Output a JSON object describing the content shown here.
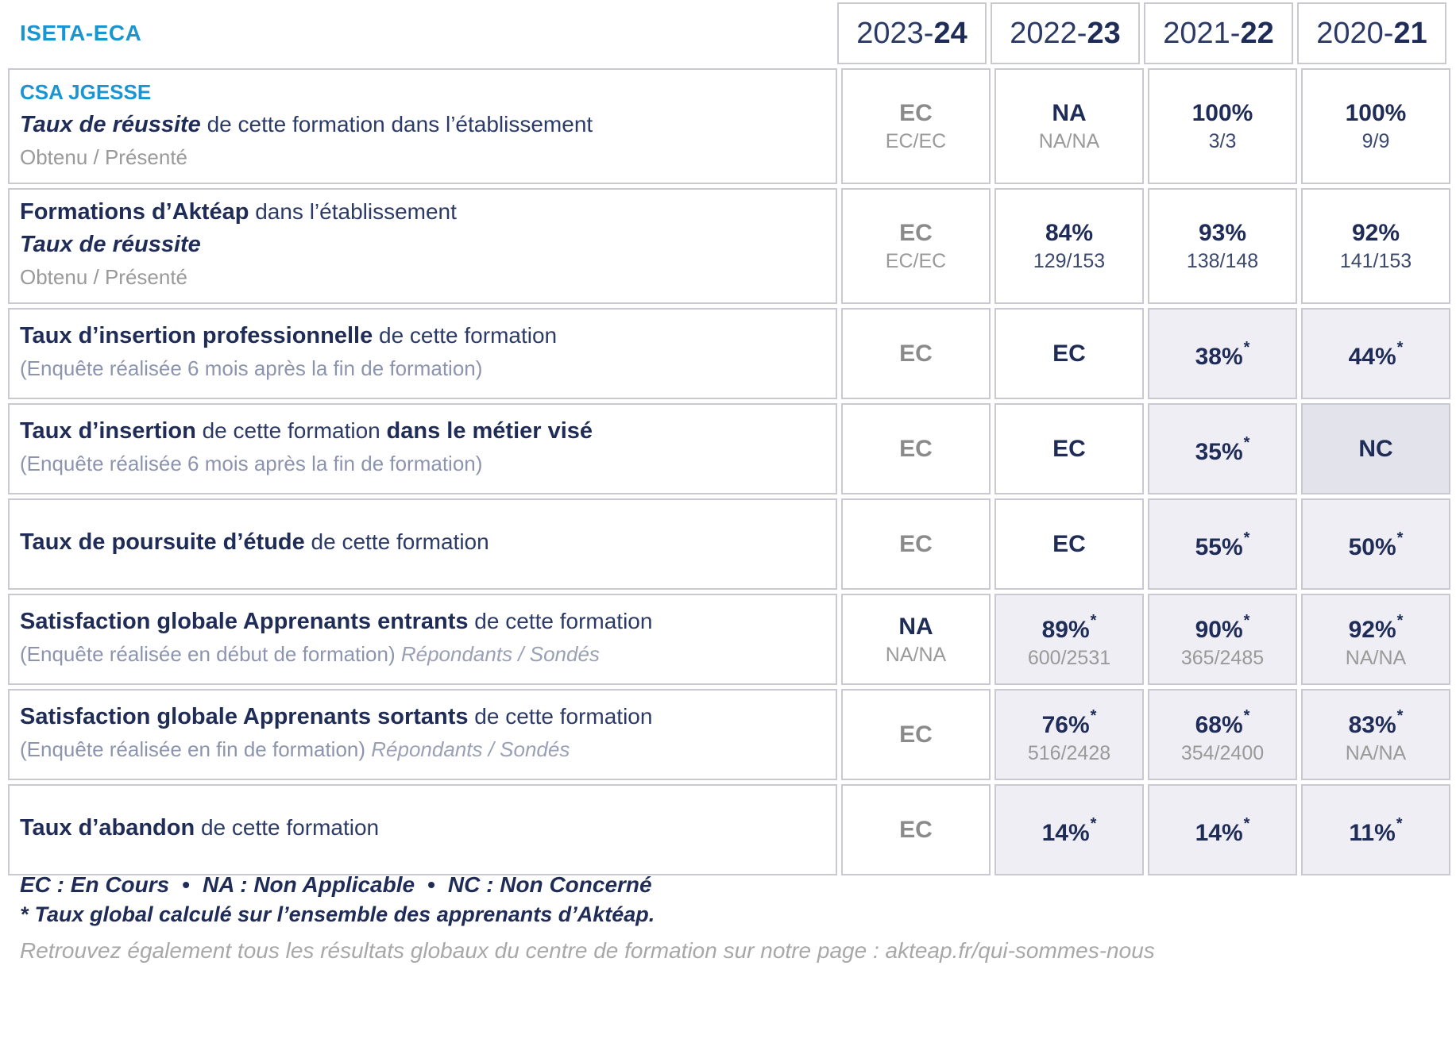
{
  "title": "ISETA-ECA",
  "colors": {
    "accent_blue": "#1b95d2",
    "navy_bold": "#1f2c57",
    "navy_regular": "#2c3a68",
    "gray_value": "#8b8b8b",
    "gray_sub": "#9a9a9a",
    "bluegray_sub": "#8d94ae",
    "cell_border": "#c9c9d1",
    "cell_shade": "#eeeef4",
    "cell_shade_dark": "#e3e3ec"
  },
  "table": {
    "years": [
      {
        "prefix": "2023-",
        "suffix": "24"
      },
      {
        "prefix": "2022-",
        "suffix": "23"
      },
      {
        "prefix": "2021-",
        "suffix": "22"
      },
      {
        "prefix": "2020-",
        "suffix": "21"
      }
    ],
    "rows": [
      {
        "name": "taux-reussite-formation",
        "label_lines": [
          [
            {
              "text": "CSA JGESSE",
              "style": "csa"
            }
          ],
          [
            {
              "text": "Taux de réussite",
              "style": "bi"
            },
            {
              "text": " de cette formation dans l’établissement",
              "style": "r"
            }
          ],
          [
            {
              "text": "Obtenu / Présenté",
              "style": "sub-gray"
            }
          ]
        ],
        "cells": [
          {
            "main": "EC",
            "main_color": "gray",
            "star": false,
            "sub": "EC/EC",
            "sub_color": "gray",
            "bg": "white"
          },
          {
            "main": "NA",
            "main_color": "navy",
            "star": false,
            "sub": "NA/NA",
            "sub_color": "gray",
            "bg": "white"
          },
          {
            "main": "100%",
            "main_color": "navy",
            "star": false,
            "sub": "3/3",
            "sub_color": "navy",
            "bg": "white"
          },
          {
            "main": "100%",
            "main_color": "navy",
            "star": false,
            "sub": "9/9",
            "sub_color": "navy",
            "bg": "white"
          }
        ]
      },
      {
        "name": "taux-reussite-akteap",
        "label_lines": [
          [
            {
              "text": "Formations d’Aktéap",
              "style": "b"
            },
            {
              "text": " dans l’établissement",
              "style": "r"
            }
          ],
          [
            {
              "text": "Taux de réussite",
              "style": "bi"
            }
          ],
          [
            {
              "text": "Obtenu / Présenté",
              "style": "sub-gray"
            }
          ]
        ],
        "cells": [
          {
            "main": "EC",
            "main_color": "gray",
            "star": false,
            "sub": "EC/EC",
            "sub_color": "gray",
            "bg": "white"
          },
          {
            "main": "84%",
            "main_color": "navy",
            "star": false,
            "sub": "129/153",
            "sub_color": "navy",
            "bg": "white"
          },
          {
            "main": "93%",
            "main_color": "navy",
            "star": false,
            "sub": "138/148",
            "sub_color": "navy",
            "bg": "white"
          },
          {
            "main": "92%",
            "main_color": "navy",
            "star": false,
            "sub": "141/153",
            "sub_color": "navy",
            "bg": "white"
          }
        ]
      },
      {
        "name": "taux-insertion-professionnelle",
        "label_lines": [
          [
            {
              "text": "Taux d’insertion professionnelle",
              "style": "b"
            },
            {
              "text": " de cette formation",
              "style": "r"
            }
          ],
          [
            {
              "text": "(Enquête réalisée 6 mois après la fin de formation)",
              "style": "sub-blue"
            }
          ]
        ],
        "cells": [
          {
            "main": "EC",
            "main_color": "gray",
            "star": false,
            "sub": "",
            "sub_color": "",
            "bg": "white"
          },
          {
            "main": "EC",
            "main_color": "navy",
            "star": false,
            "sub": "",
            "sub_color": "",
            "bg": "white"
          },
          {
            "main": "38%",
            "main_color": "navy",
            "star": true,
            "sub": "",
            "sub_color": "",
            "bg": "lav"
          },
          {
            "main": "44%",
            "main_color": "navy",
            "star": true,
            "sub": "",
            "sub_color": "",
            "bg": "lav"
          }
        ]
      },
      {
        "name": "taux-insertion-metier-vise",
        "label_lines": [
          [
            {
              "text": "Taux d’insertion",
              "style": "b"
            },
            {
              "text": " de cette formation ",
              "style": "r"
            },
            {
              "text": "dans le métier visé",
              "style": "b"
            }
          ],
          [
            {
              "text": "(Enquête réalisée 6 mois après la fin de formation)",
              "style": "sub-blue"
            }
          ]
        ],
        "cells": [
          {
            "main": "EC",
            "main_color": "gray",
            "star": false,
            "sub": "",
            "sub_color": "",
            "bg": "white"
          },
          {
            "main": "EC",
            "main_color": "navy",
            "star": false,
            "sub": "",
            "sub_color": "",
            "bg": "white"
          },
          {
            "main": "35%",
            "main_color": "navy",
            "star": true,
            "sub": "",
            "sub_color": "",
            "bg": "lav"
          },
          {
            "main": "NC",
            "main_color": "navy",
            "star": false,
            "sub": "",
            "sub_color": "",
            "bg": "lav2"
          }
        ]
      },
      {
        "name": "taux-poursuite-etude",
        "label_lines": [
          [
            {
              "text": "Taux de poursuite d’étude",
              "style": "b"
            },
            {
              "text": " de cette formation",
              "style": "r"
            }
          ]
        ],
        "cells": [
          {
            "main": "EC",
            "main_color": "gray",
            "star": false,
            "sub": "",
            "sub_color": "",
            "bg": "white"
          },
          {
            "main": "EC",
            "main_color": "navy",
            "star": false,
            "sub": "",
            "sub_color": "",
            "bg": "white"
          },
          {
            "main": "55%",
            "main_color": "navy",
            "star": true,
            "sub": "",
            "sub_color": "",
            "bg": "lav"
          },
          {
            "main": "50%",
            "main_color": "navy",
            "star": true,
            "sub": "",
            "sub_color": "",
            "bg": "lav"
          }
        ]
      },
      {
        "name": "satisfaction-apprenants-entrants",
        "label_lines": [
          [
            {
              "text": "Satisfaction globale Apprenants entrants",
              "style": "b"
            },
            {
              "text": " de cette formation",
              "style": "r"
            }
          ],
          [
            {
              "text": "(Enquête réalisée en début de formation) ",
              "style": "sub-blue"
            },
            {
              "text": "Répondants / Sondés",
              "style": "sub-blue-i"
            }
          ]
        ],
        "cells": [
          {
            "main": "NA",
            "main_color": "navy",
            "star": false,
            "sub": "NA/NA",
            "sub_color": "gray",
            "bg": "white"
          },
          {
            "main": "89%",
            "main_color": "navy",
            "star": true,
            "sub": "600/2531",
            "sub_color": "gray",
            "bg": "lav"
          },
          {
            "main": "90%",
            "main_color": "navy",
            "star": true,
            "sub": "365/2485",
            "sub_color": "gray",
            "bg": "lav"
          },
          {
            "main": "92%",
            "main_color": "navy",
            "star": true,
            "sub": "NA/NA",
            "sub_color": "gray",
            "bg": "lav"
          }
        ]
      },
      {
        "name": "satisfaction-apprenants-sortants",
        "label_lines": [
          [
            {
              "text": "Satisfaction globale Apprenants sortants",
              "style": "b"
            },
            {
              "text": " de cette formation",
              "style": "r"
            }
          ],
          [
            {
              "text": "(Enquête réalisée en fin de formation) ",
              "style": "sub-blue"
            },
            {
              "text": "Répondants / Sondés",
              "style": "sub-blue-i"
            }
          ]
        ],
        "cells": [
          {
            "main": "EC",
            "main_color": "gray",
            "star": false,
            "sub": "",
            "sub_color": "",
            "bg": "white"
          },
          {
            "main": "76%",
            "main_color": "navy",
            "star": true,
            "sub": "516/2428",
            "sub_color": "gray",
            "bg": "lav"
          },
          {
            "main": "68%",
            "main_color": "navy",
            "star": true,
            "sub": "354/2400",
            "sub_color": "gray",
            "bg": "lav"
          },
          {
            "main": "83%",
            "main_color": "navy",
            "star": true,
            "sub": "NA/NA",
            "sub_color": "gray",
            "bg": "lav"
          }
        ]
      },
      {
        "name": "taux-abandon",
        "label_lines": [
          [
            {
              "text": "Taux d’abandon",
              "style": "b"
            },
            {
              "text": " de cette formation",
              "style": "r"
            }
          ]
        ],
        "cells": [
          {
            "main": "EC",
            "main_color": "gray",
            "star": false,
            "sub": "",
            "sub_color": "",
            "bg": "white"
          },
          {
            "main": "14%",
            "main_color": "navy",
            "star": true,
            "sub": "",
            "sub_color": "",
            "bg": "lav"
          },
          {
            "main": "14%",
            "main_color": "navy",
            "star": true,
            "sub": "",
            "sub_color": "",
            "bg": "lav"
          },
          {
            "main": "11%",
            "main_color": "navy",
            "star": true,
            "sub": "",
            "sub_color": "",
            "bg": "lav"
          }
        ]
      }
    ]
  },
  "footer": {
    "legend_items": [
      "EC : En Cours",
      "NA : Non Applicable",
      "NC : Non Concerné"
    ],
    "bullet": "•",
    "footnote_star": "*",
    "footnote_text": "Taux global calculé sur l’ensemble des apprenants d’Aktéap.",
    "note": "Retrouvez également tous les résultats globaux du centre de formation sur notre page : akteap.fr/qui-sommes-nous"
  }
}
